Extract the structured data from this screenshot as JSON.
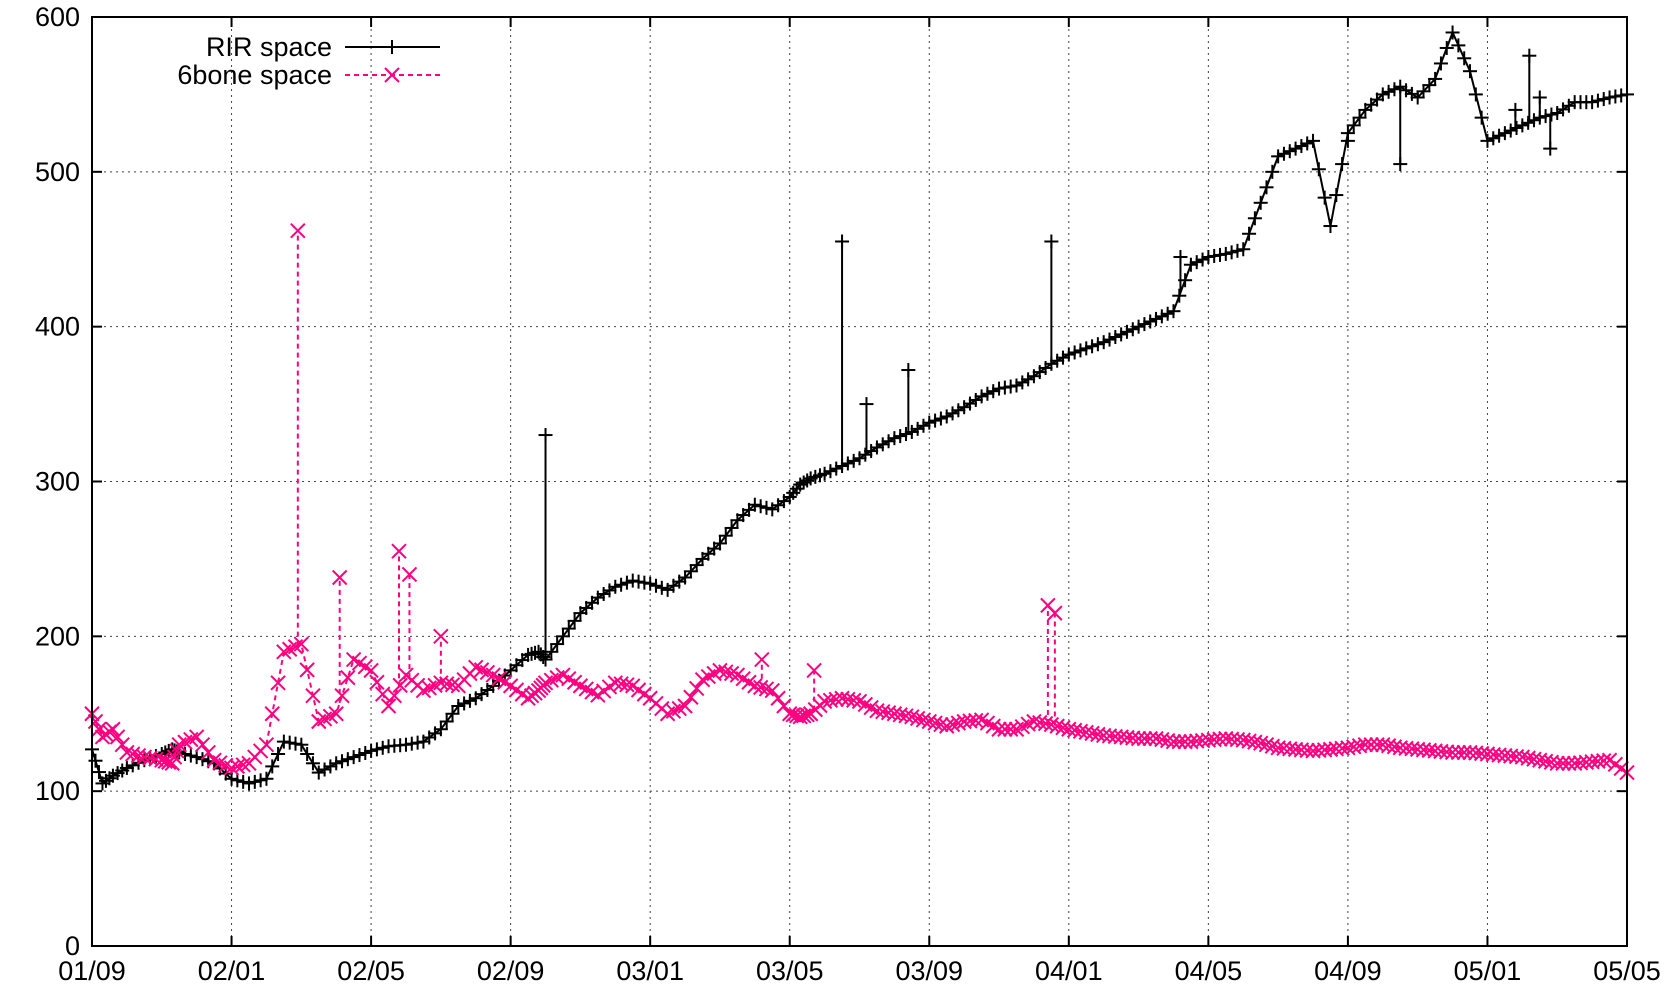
{
  "chart_data": {
    "type": "line",
    "title": "",
    "xlabel": "",
    "ylabel": "",
    "x_ticks": [
      "01/09",
      "02/01",
      "02/05",
      "02/09",
      "03/01",
      "03/05",
      "03/09",
      "04/01",
      "04/05",
      "04/09",
      "05/01",
      "05/05"
    ],
    "y_ticks": [
      "0",
      "100",
      "200",
      "300",
      "400",
      "500",
      "600"
    ],
    "xlim": [
      0,
      44
    ],
    "ylim": [
      0,
      600
    ],
    "grid": true,
    "legend_position": "top-left",
    "series": [
      {
        "name": "RIR space",
        "color": "#000000",
        "line_style": "solid",
        "marker": "plus",
        "x": [
          0,
          0.3,
          0.6,
          1,
          1.5,
          2,
          2.3,
          2.5,
          3,
          3.5,
          4,
          4.5,
          5,
          5.5,
          6,
          6.5,
          7,
          7.5,
          8,
          8.5,
          9,
          9.5,
          10,
          10.5,
          11,
          11.5,
          12,
          12.5,
          12.8,
          13,
          13.5,
          14,
          14.5,
          15,
          15.5,
          16,
          16.5,
          17,
          17.5,
          18,
          18.5,
          19,
          19.5,
          20,
          20.3,
          20.6,
          21,
          21.5,
          22,
          22.5,
          23,
          23.5,
          24,
          24.5,
          25,
          25.5,
          26,
          26.5,
          27,
          27.5,
          28,
          28.5,
          29,
          29.5,
          30,
          30.5,
          31,
          31.5,
          32,
          32.5,
          33,
          33.5,
          34,
          34.5,
          35,
          35.5,
          36,
          36.5,
          37,
          37.5,
          38,
          38.5,
          39,
          39.5,
          40,
          40.5,
          41,
          41.5,
          42,
          42.5,
          43,
          43.5,
          44
        ],
        "y": [
          127,
          105,
          110,
          115,
          120,
          124,
          127,
          125,
          122,
          118,
          108,
          105,
          108,
          132,
          130,
          112,
          118,
          122,
          126,
          129,
          130,
          132,
          140,
          155,
          160,
          168,
          178,
          188,
          190,
          185,
          200,
          215,
          225,
          232,
          236,
          234,
          230,
          238,
          250,
          260,
          275,
          285,
          282,
          290,
          298,
          302,
          305,
          310,
          315,
          322,
          328,
          332,
          338,
          342,
          348,
          355,
          360,
          362,
          368,
          376,
          382,
          386,
          390,
          395,
          400,
          405,
          410,
          440,
          445,
          447,
          450,
          480,
          510,
          515,
          520,
          465,
          525,
          540,
          550,
          555,
          548,
          560,
          590,
          565,
          520,
          525,
          530,
          535,
          538,
          545,
          545,
          548,
          550
        ],
        "spikes": [
          [
            13,
            330
          ],
          [
            21.5,
            455
          ],
          [
            22.2,
            350
          ],
          [
            23.4,
            372
          ],
          [
            27.5,
            455
          ],
          [
            31.2,
            445
          ],
          [
            36,
            520
          ],
          [
            37.5,
            505
          ],
          [
            40.8,
            540
          ],
          [
            41.5,
            548
          ],
          [
            41.8,
            515
          ],
          [
            41.2,
            575
          ]
        ]
      },
      {
        "name": "6bone space",
        "color": "#ff0080",
        "line_style": "dashed",
        "marker": "cross",
        "x": [
          0,
          0.3,
          0.6,
          1,
          1.5,
          2,
          2.3,
          2.5,
          3,
          3.5,
          4,
          4.5,
          5,
          5.5,
          6,
          6.5,
          7,
          7.5,
          8,
          8.5,
          9,
          9.5,
          10,
          10.5,
          11,
          11.5,
          12,
          12.5,
          12.8,
          13,
          13.5,
          14,
          14.5,
          15,
          15.5,
          16,
          16.5,
          17,
          17.5,
          18,
          18.5,
          19,
          19.5,
          20,
          20.3,
          20.6,
          21,
          21.5,
          22,
          22.5,
          23,
          23.5,
          24,
          24.5,
          25,
          25.5,
          26,
          26.5,
          27,
          27.5,
          28,
          28.5,
          29,
          29.5,
          30,
          30.5,
          31,
          31.5,
          32,
          32.5,
          33,
          33.5,
          34,
          34.5,
          35,
          35.5,
          36,
          36.5,
          37,
          37.5,
          38,
          38.5,
          39,
          39.5,
          40,
          40.5,
          41,
          41.5,
          42,
          42.5,
          43,
          43.5,
          44
        ],
        "y": [
          150,
          135,
          140,
          125,
          122,
          120,
          118,
          130,
          135,
          120,
          115,
          118,
          130,
          190,
          195,
          145,
          150,
          185,
          178,
          155,
          175,
          165,
          170,
          168,
          180,
          175,
          168,
          160,
          165,
          170,
          175,
          168,
          162,
          170,
          168,
          160,
          150,
          155,
          172,
          178,
          175,
          168,
          165,
          150,
          148,
          150,
          158,
          160,
          158,
          152,
          150,
          148,
          145,
          142,
          145,
          146,
          140,
          140,
          145,
          143,
          140,
          138,
          136,
          135,
          134,
          134,
          132,
          132,
          133,
          134,
          133,
          131,
          128,
          127,
          126,
          127,
          128,
          130,
          130,
          128,
          127,
          126,
          125,
          125,
          124,
          123,
          122,
          120,
          118,
          118,
          119,
          120,
          112
        ],
        "spikes": [
          [
            5.9,
            462
          ],
          [
            7.1,
            238
          ],
          [
            8.8,
            255
          ],
          [
            9.1,
            240
          ],
          [
            10,
            200
          ],
          [
            20.7,
            178
          ],
          [
            19.2,
            185
          ],
          [
            27.4,
            220
          ],
          [
            27.6,
            215
          ]
        ]
      }
    ]
  }
}
